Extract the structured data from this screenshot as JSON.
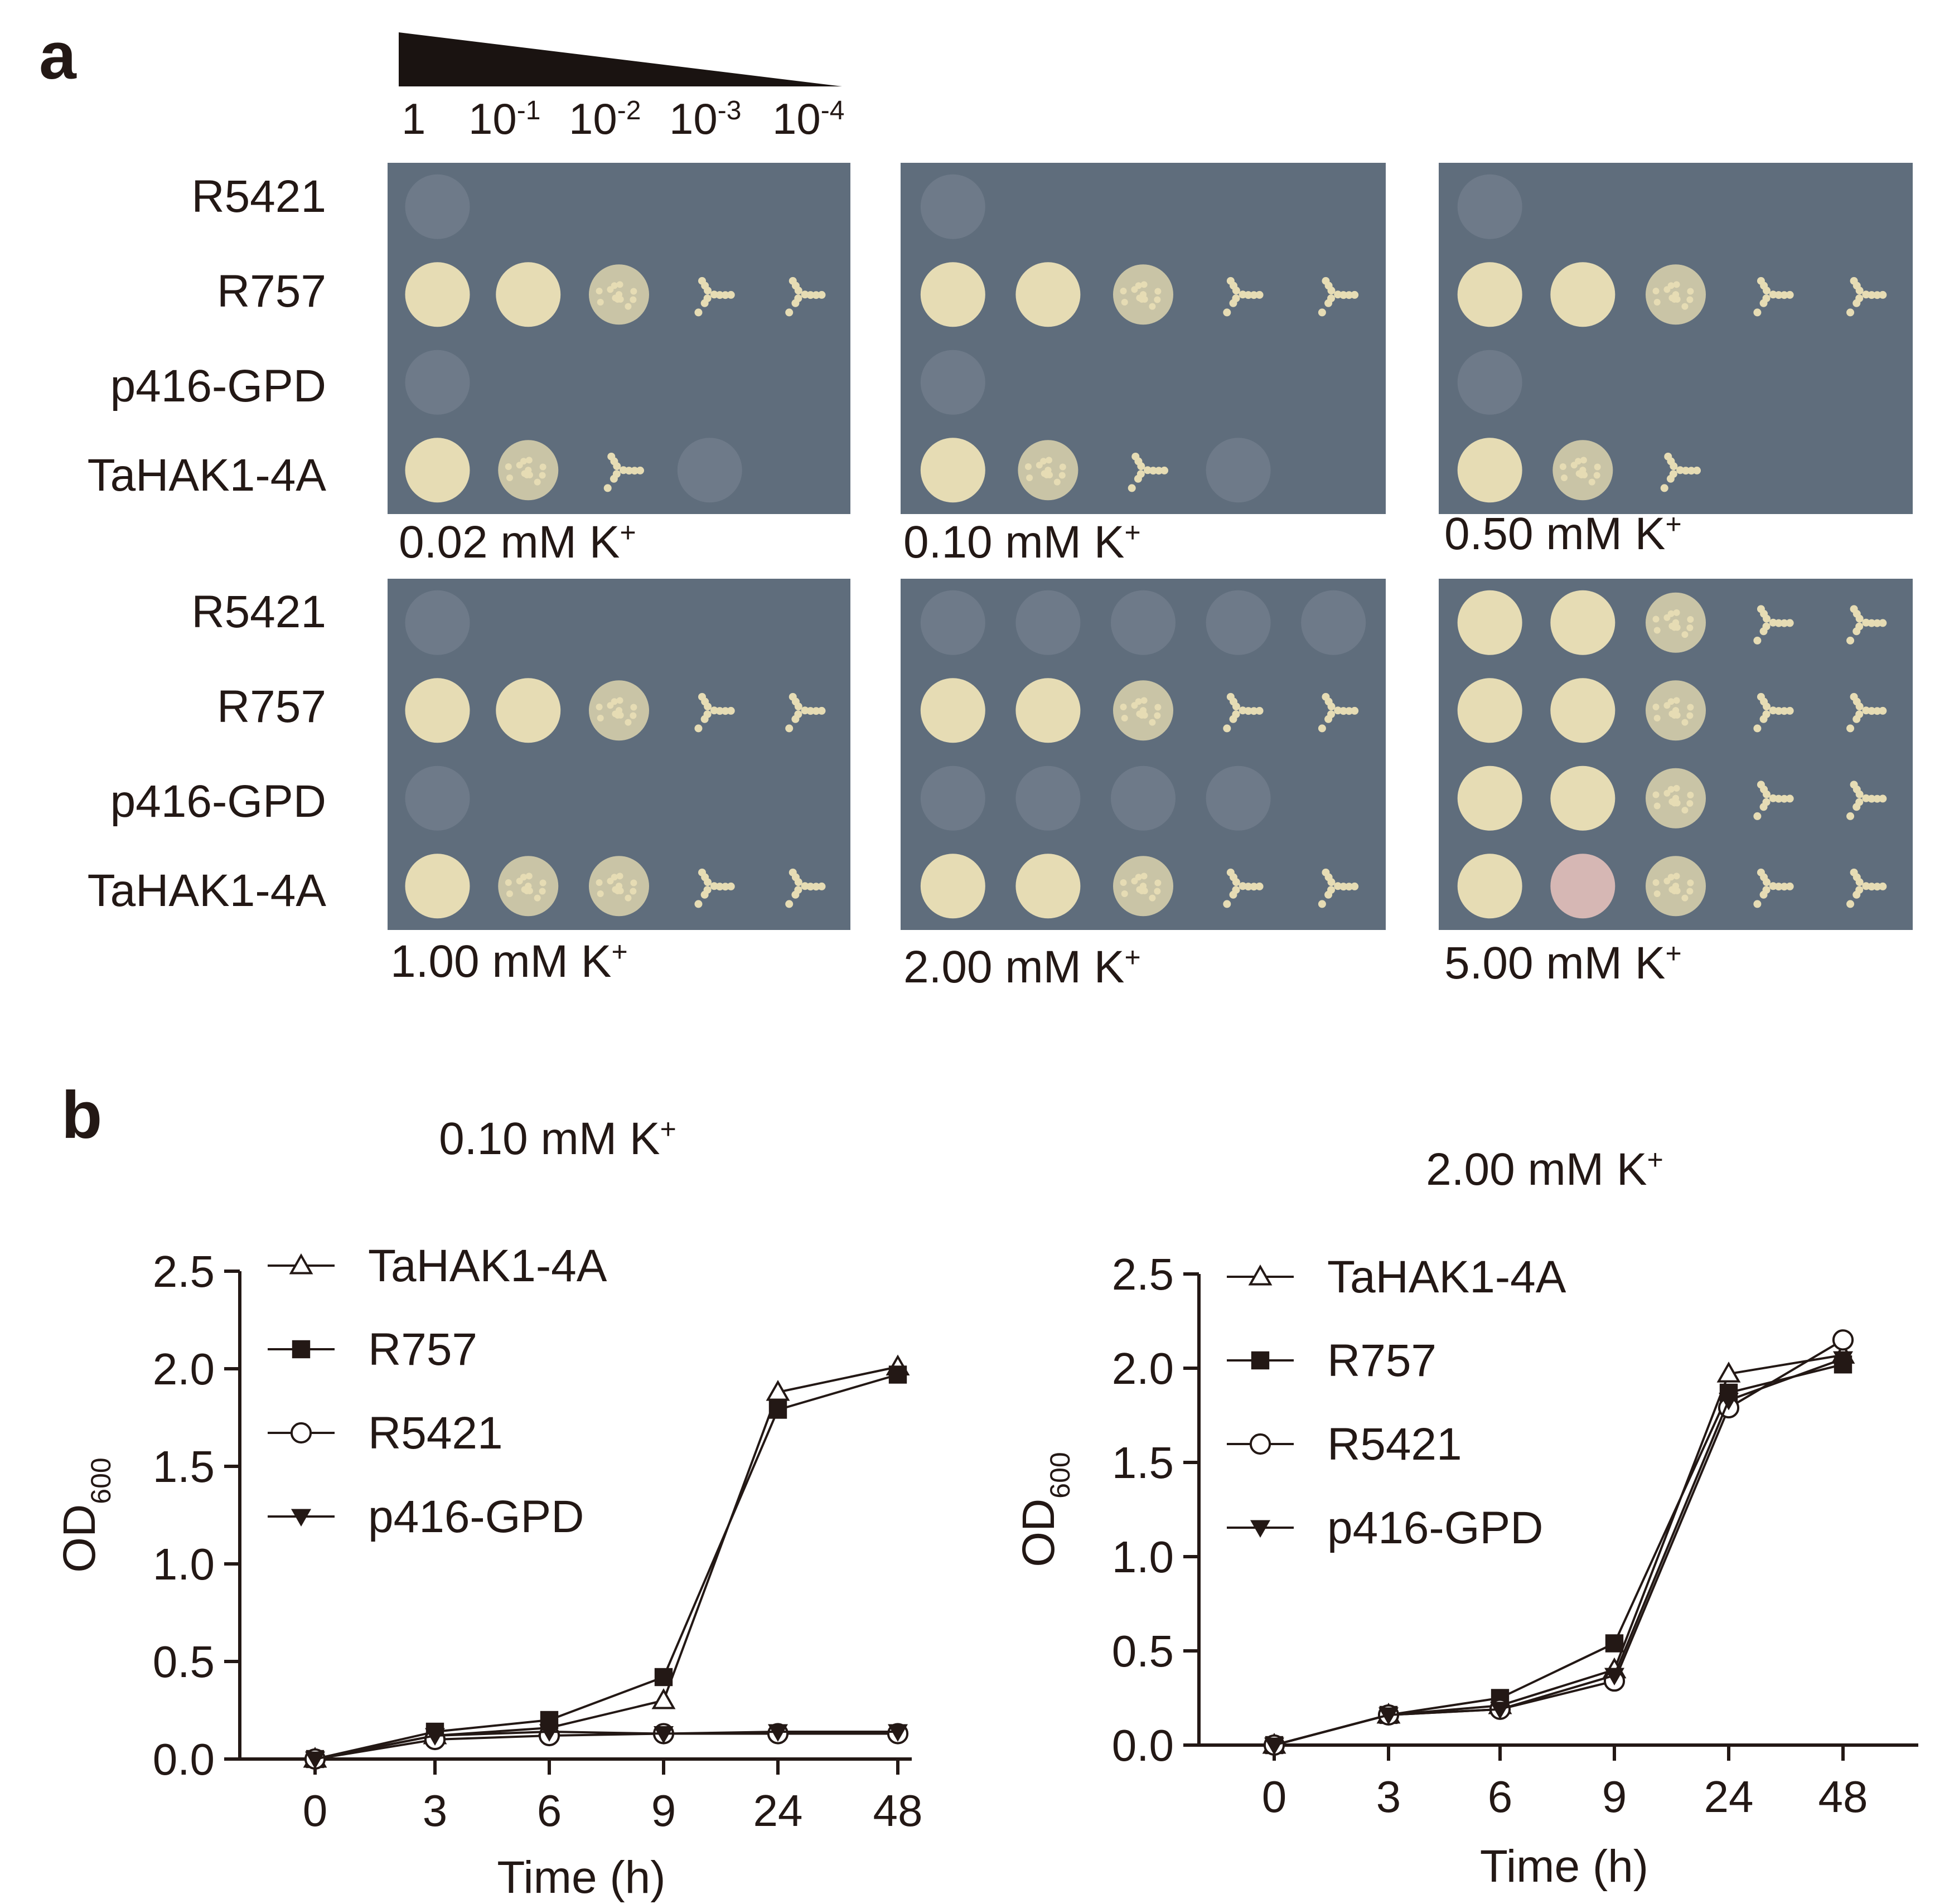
{
  "panel_a": {
    "label": "a",
    "dilutions": [
      "1",
      "10",
      "10",
      "10",
      "10"
    ],
    "dilution_exponents": [
      "",
      "-1",
      "-2",
      "-3",
      "-4"
    ],
    "strains": [
      "R5421",
      "R757",
      "p416-GPD",
      "TaHAK1-4A"
    ],
    "conditions": [
      {
        "value": "0.02",
        "unit": "mM K",
        "ion": "+"
      },
      {
        "value": "0.10",
        "unit": "mM K",
        "ion": "+"
      },
      {
        "value": "0.50",
        "unit": "mM K",
        "ion": "+"
      },
      {
        "value": "1.00",
        "unit": "mM K",
        "ion": "+"
      },
      {
        "value": "2.00",
        "unit": "mM K",
        "ion": "+"
      },
      {
        "value": "5.00",
        "unit": "mM K",
        "ion": "+"
      }
    ],
    "colors": {
      "plate": "#5f6d7c",
      "colony": "#e6dcb4",
      "colony_pink": "#d6b7b4"
    }
  },
  "panel_b": {
    "label": "b",
    "ylabel_main": "OD",
    "ylabel_sub": "600",
    "xlabel": "Time (h)"
  },
  "chart_data": [
    {
      "type": "line",
      "title": "0.10 mM K+",
      "title_main": "0.10 mM K",
      "title_sup": "+",
      "xlabel": "Time (h)",
      "ylabel": "OD600",
      "x": [
        "0",
        "3",
        "6",
        "9",
        "24",
        "48"
      ],
      "ylim": [
        0,
        2.5
      ],
      "yticks": [
        "0.0",
        "0.5",
        "1.0",
        "1.5",
        "2.0",
        "2.5"
      ],
      "legend_position": "top-left",
      "series": [
        {
          "name": "TaHAK1-4A",
          "marker": "triangle-open",
          "values": [
            0.0,
            0.12,
            0.16,
            0.3,
            1.88,
            2.01
          ]
        },
        {
          "name": "R757",
          "marker": "square-filled",
          "values": [
            0.0,
            0.14,
            0.2,
            0.42,
            1.79,
            1.97
          ]
        },
        {
          "name": "R5421",
          "marker": "circle-open",
          "values": [
            0.0,
            0.1,
            0.12,
            0.13,
            0.13,
            0.13
          ]
        },
        {
          "name": "p416-GPD",
          "marker": "triangle-down-filled",
          "values": [
            0.0,
            0.12,
            0.14,
            0.13,
            0.14,
            0.14
          ]
        }
      ]
    },
    {
      "type": "line",
      "title": "2.00 mM K+",
      "title_main": "2.00 mM K",
      "title_sup": "+",
      "xlabel": "Time (h)",
      "ylabel": "OD600",
      "x": [
        "0",
        "3",
        "6",
        "9",
        "24",
        "48"
      ],
      "ylim": [
        0,
        2.5
      ],
      "yticks": [
        "0.0",
        "0.5",
        "1.0",
        "1.5",
        "2.0",
        "2.5"
      ],
      "legend_position": "top-left",
      "series": [
        {
          "name": "TaHAK1-4A",
          "marker": "triangle-open",
          "values": [
            0.0,
            0.16,
            0.21,
            0.4,
            1.97,
            2.07
          ]
        },
        {
          "name": "R757",
          "marker": "square-filled",
          "values": [
            0.0,
            0.16,
            0.25,
            0.54,
            1.87,
            2.02
          ]
        },
        {
          "name": "R5421",
          "marker": "circle-open",
          "values": [
            0.0,
            0.16,
            0.19,
            0.34,
            1.79,
            2.15
          ]
        },
        {
          "name": "p416-GPD",
          "marker": "triangle-down-filled",
          "values": [
            0.0,
            0.16,
            0.19,
            0.37,
            1.83,
            2.05
          ]
        }
      ]
    }
  ]
}
